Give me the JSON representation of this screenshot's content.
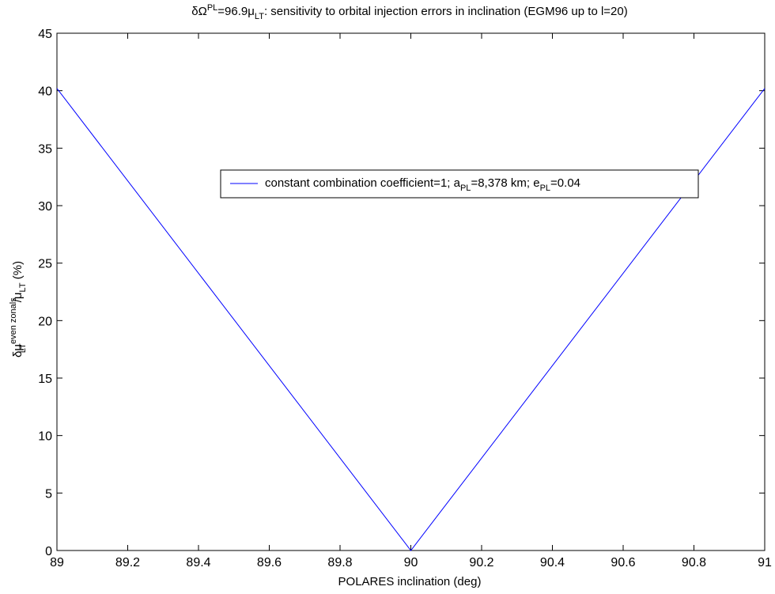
{
  "chart_data": {
    "type": "line",
    "title": {
      "prefix": "δΩ",
      "prefix_sup": "PL",
      "middle": "=96.9μ",
      "middle_sub": "LT",
      "suffix": ": sensitivity to orbital injection errors in inclination (EGM96 up to l=20)"
    },
    "xlabel": "POLARES inclination (deg)",
    "ylabel": {
      "part1": "δμ",
      "part1_sup": "even zonals",
      "part1_sub": "LT",
      "part2": "/μ",
      "part2_sub": "LT",
      "part3": " (%)"
    },
    "xlim": [
      89,
      91
    ],
    "ylim": [
      0,
      45
    ],
    "xticks": [
      89,
      89.2,
      89.4,
      89.6,
      89.8,
      90,
      90.2,
      90.4,
      90.6,
      90.8,
      91
    ],
    "xtick_labels": [
      "89",
      "89.2",
      "89.4",
      "89.6",
      "89.8",
      "90",
      "90.2",
      "90.4",
      "90.6",
      "90.8",
      "91"
    ],
    "yticks": [
      0,
      5,
      10,
      15,
      20,
      25,
      30,
      35,
      40,
      45
    ],
    "ytick_labels": [
      "0",
      "5",
      "10",
      "15",
      "20",
      "25",
      "30",
      "35",
      "40",
      "45"
    ],
    "grid": false,
    "legend_position": "upper-right",
    "series": [
      {
        "name": {
          "t1": "constant combination coefficient=1; a",
          "s1": "PL",
          "t2": "=8,378 km; e",
          "s2": "PL",
          "t3": "=0.04"
        },
        "color": "#0000ff",
        "x": [
          89,
          90,
          91
        ],
        "y": [
          40.2,
          0,
          40.2
        ]
      }
    ]
  }
}
